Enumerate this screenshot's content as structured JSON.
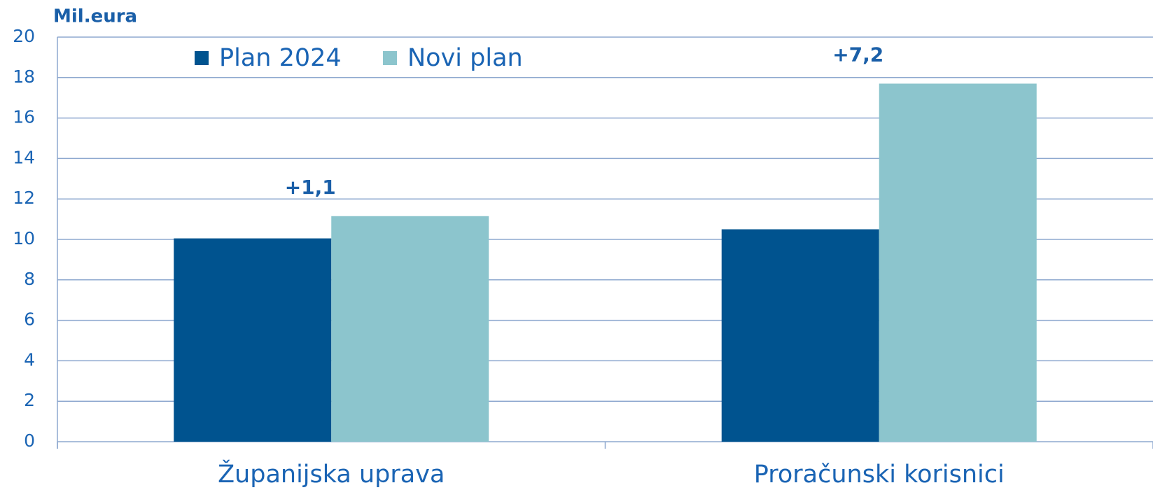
{
  "chart_data": {
    "type": "bar",
    "y_label": "Mil.eura",
    "categories": [
      "Županijska uprava",
      "Proračunski korisnici"
    ],
    "series": [
      {
        "name": "Plan 2024",
        "color": "#00538f",
        "values": [
          10.05,
          10.5
        ]
      },
      {
        "name": "Novi plan",
        "color": "#8cc5cd",
        "values": [
          11.15,
          17.7
        ]
      }
    ],
    "annotations": [
      "+1,1",
      "+7,2"
    ],
    "ylim": [
      0,
      20
    ],
    "yticks": [
      0,
      2,
      4,
      6,
      8,
      10,
      12,
      14,
      16,
      18,
      20
    ],
    "grid": true
  }
}
